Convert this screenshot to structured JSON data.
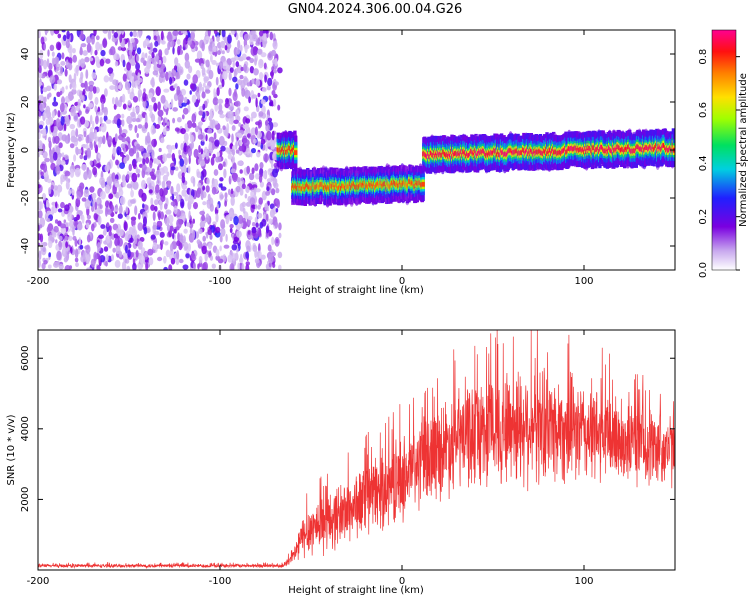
{
  "title": "GN04.2024.306.00.04.G26",
  "colors": {
    "snr_line": "#ee3333",
    "background": "#ffffff",
    "axis": "#000000"
  },
  "chart_data": [
    {
      "type": "heatmap",
      "xlabel": "Height of straight line (km)",
      "ylabel": "Frequency (Hz)",
      "xlim": [
        -200,
        150
      ],
      "ylim": [
        -50,
        50
      ],
      "xticks": [
        "-200",
        "-100",
        "0",
        "100"
      ],
      "yticks": [
        "40",
        "20",
        "0",
        "-20",
        "-40"
      ],
      "colorbar": {
        "label": "Normalized spectral amplitude",
        "range": [
          0.0,
          0.9
        ],
        "ticks": [
          "0.0",
          "0.2",
          "0.4",
          "0.6",
          "0.8"
        ],
        "colormap": "rainbow-violet-to-magenta"
      },
      "regions": [
        {
          "name": "noise",
          "x_range": [
            -200,
            -67
          ],
          "freq_range": [
            -50,
            50
          ],
          "amplitude": 0.15
        },
        {
          "name": "",
          "x_range": [
            -68,
            -58
          ],
          "freq_center": 0,
          "amplitude": 0.85
        },
        {
          "name": "",
          "x_range": [
            -60,
            12
          ],
          "freq_start": -15.5,
          "freq_end": -14,
          "amplitude": 0.8
        },
        {
          "name": "",
          "x_range": [
            12,
            150
          ],
          "freq_start": -2,
          "freq_end": 1,
          "amplitude": 0.9
        }
      ]
    },
    {
      "type": "line",
      "xlabel": "Height of straight line (km)",
      "ylabel": "SNR (10 * v/v)",
      "xlim": [
        -200,
        150
      ],
      "ylim": [
        0,
        6800
      ],
      "xticks": [
        "-200",
        "-100",
        "0",
        "100"
      ],
      "yticks": [
        "6000",
        "4000",
        "2000"
      ],
      "grid": false,
      "envelope": {
        "x": [
          -200,
          -150,
          -100,
          -65,
          -60,
          -55,
          -50,
          -40,
          -30,
          -20,
          -10,
          0,
          10,
          20,
          30,
          40,
          50,
          60,
          70,
          80,
          90,
          100,
          110,
          120,
          130,
          140,
          150
        ],
        "mean": [
          120,
          120,
          120,
          120,
          350,
          900,
          1200,
          1400,
          1700,
          2000,
          2300,
          2600,
          3000,
          3400,
          3700,
          3900,
          4000,
          4100,
          4150,
          4100,
          4000,
          3900,
          3800,
          3700,
          3600,
          3500,
          3400
        ],
        "amp": [
          60,
          60,
          60,
          60,
          250,
          700,
          900,
          1000,
          1100,
          1200,
          1300,
          1400,
          1500,
          1600,
          1700,
          1800,
          1900,
          2000,
          2000,
          1900,
          1800,
          1700,
          1600,
          1500,
          1400,
          1300,
          1200
        ]
      }
    }
  ]
}
